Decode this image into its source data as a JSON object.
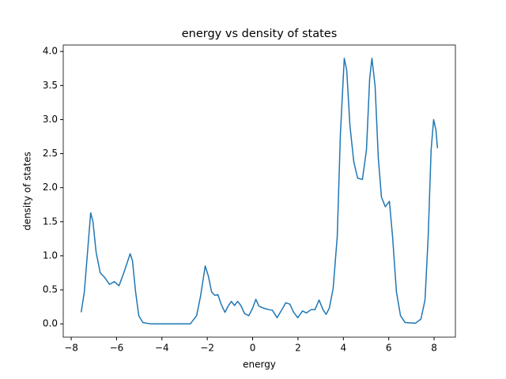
{
  "chart_data": {
    "type": "line",
    "title": "energy vs density of states",
    "x_label": "energy",
    "y_label": "density of states",
    "x": [
      -7.56,
      -7.42,
      -7.28,
      -7.14,
      -7.04,
      -6.9,
      -6.72,
      -6.52,
      -6.31,
      -6.1,
      -5.89,
      -5.68,
      -5.5,
      -5.4,
      -5.3,
      -5.16,
      -5.02,
      -4.84,
      -4.49,
      -2.75,
      -2.47,
      -2.3,
      -2.09,
      -1.95,
      -1.81,
      -1.67,
      -1.53,
      -1.39,
      -1.22,
      -1.08,
      -0.94,
      -0.8,
      -0.66,
      -0.52,
      -0.35,
      -0.17,
      0,
      0.14,
      0.28,
      0.49,
      0.7,
      0.87,
      1.08,
      1.29,
      1.46,
      1.64,
      1.81,
      1.99,
      2.2,
      2.37,
      2.58,
      2.75,
      2.93,
      3.1,
      3.24,
      3.38,
      3.55,
      3.73,
      3.87,
      4.04,
      4.15,
      4.29,
      4.46,
      4.63,
      4.84,
      5.02,
      5.16,
      5.26,
      5.4,
      5.54,
      5.68,
      5.85,
      6.03,
      6.17,
      6.34,
      6.52,
      6.72,
      7.18,
      7.42,
      7.6,
      7.74,
      7.87,
      7.98,
      8.08,
      8.15
    ],
    "series": [
      {
        "color": "#1f77b4",
        "values": [
          0.17,
          0.47,
          1.05,
          1.63,
          1.5,
          1.05,
          0.75,
          0.68,
          0.58,
          0.62,
          0.56,
          0.75,
          0.93,
          1.03,
          0.93,
          0.47,
          0.12,
          0.02,
          0,
          0,
          0.12,
          0.4,
          0.85,
          0.7,
          0.47,
          0.42,
          0.43,
          0.29,
          0.17,
          0.26,
          0.33,
          0.27,
          0.33,
          0.27,
          0.15,
          0.12,
          0.23,
          0.36,
          0.26,
          0.23,
          0.21,
          0.2,
          0.09,
          0.21,
          0.31,
          0.29,
          0.17,
          0.09,
          0.19,
          0.16,
          0.21,
          0.21,
          0.35,
          0.21,
          0.14,
          0.23,
          0.52,
          1.28,
          2.79,
          3.9,
          3.72,
          2.91,
          2.38,
          2.14,
          2.12,
          2.56,
          3.6,
          3.9,
          3.49,
          2.44,
          1.86,
          1.72,
          1.8,
          1.28,
          0.47,
          0.12,
          0.02,
          0.01,
          0.07,
          0.35,
          1.28,
          2.56,
          3.0,
          2.85,
          2.58
        ]
      }
    ],
    "xlim": [
      -8.35,
      8.94
    ],
    "ylim": [
      -0.195,
      4.095
    ],
    "xticks": [
      {
        "value": -8,
        "label": "−8"
      },
      {
        "value": -6,
        "label": "−6"
      },
      {
        "value": -4,
        "label": "−4"
      },
      {
        "value": -2,
        "label": "−2"
      },
      0,
      2,
      4,
      6,
      8
    ],
    "yticks": [
      {
        "value": 0,
        "label": "0.0"
      },
      0.5,
      {
        "value": 1,
        "label": "1.0"
      },
      1.5,
      {
        "value": 2,
        "label": "2.0"
      },
      2.5,
      {
        "value": 3,
        "label": "3.0"
      },
      3.5,
      {
        "value": 4,
        "label": "4.0"
      }
    ]
  }
}
